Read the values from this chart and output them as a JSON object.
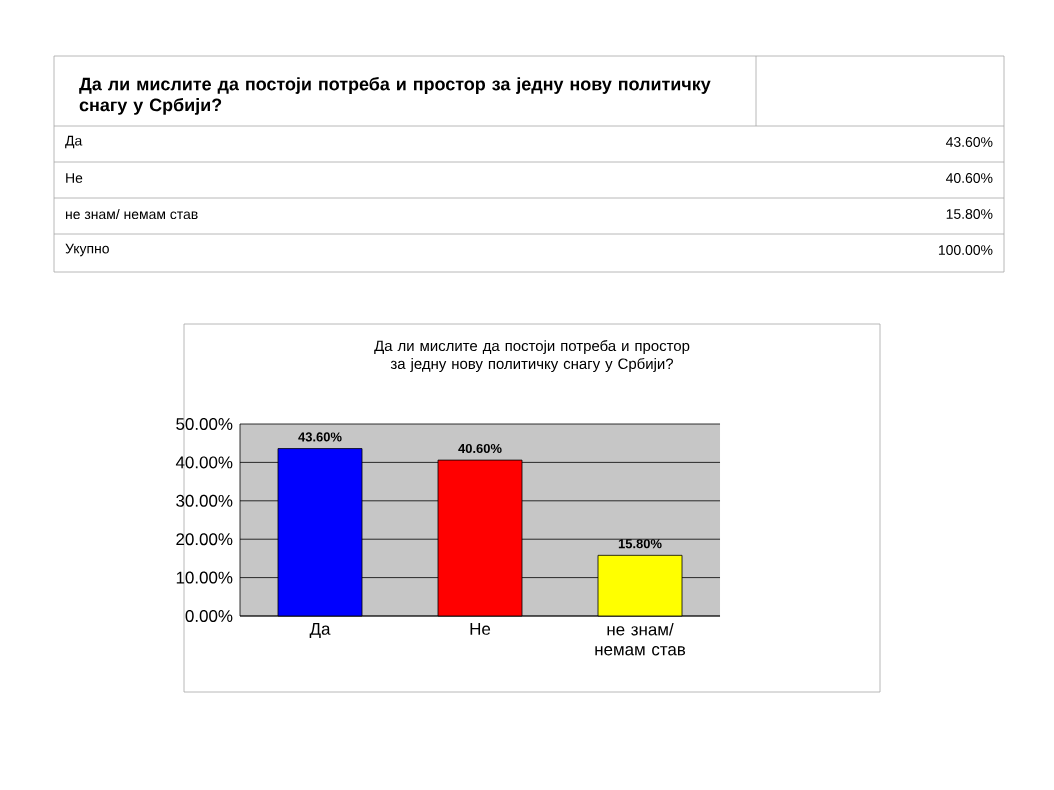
{
  "chart_data": {
    "type": "bar",
    "title": "Да ли мислите да постоји потреба и простор за једну нову политичку снагу у Србији?",
    "categories": [
      "Да",
      "Не",
      "не знам/ немам став"
    ],
    "values": [
      43.6,
      40.6,
      15.8
    ],
    "colors": [
      "#0000ff",
      "#ff0000",
      "#ffff00"
    ],
    "value_labels": [
      "43.60%",
      "40.60%",
      "15.80%"
    ],
    "ylim": [
      0,
      50
    ],
    "yticks": [
      {
        "value": 0,
        "label": "0.00%"
      },
      {
        "value": 10,
        "label": "10.00%"
      },
      {
        "value": 20,
        "label": "20.00%"
      },
      {
        "value": 30,
        "label": "30.00%"
      },
      {
        "value": 40,
        "label": "40.00%"
      },
      {
        "value": 50,
        "label": "50.00%"
      }
    ],
    "grid": "y",
    "annotations": [
      "Да ли мислите да постоји потреба и простор за једну нову политичку снагу у Србији?",
      "Да",
      "43.60%",
      "Не",
      "40.60%",
      "не знам/ немам став",
      "15.80%",
      "Укупно",
      "100.00%"
    ]
  }
}
